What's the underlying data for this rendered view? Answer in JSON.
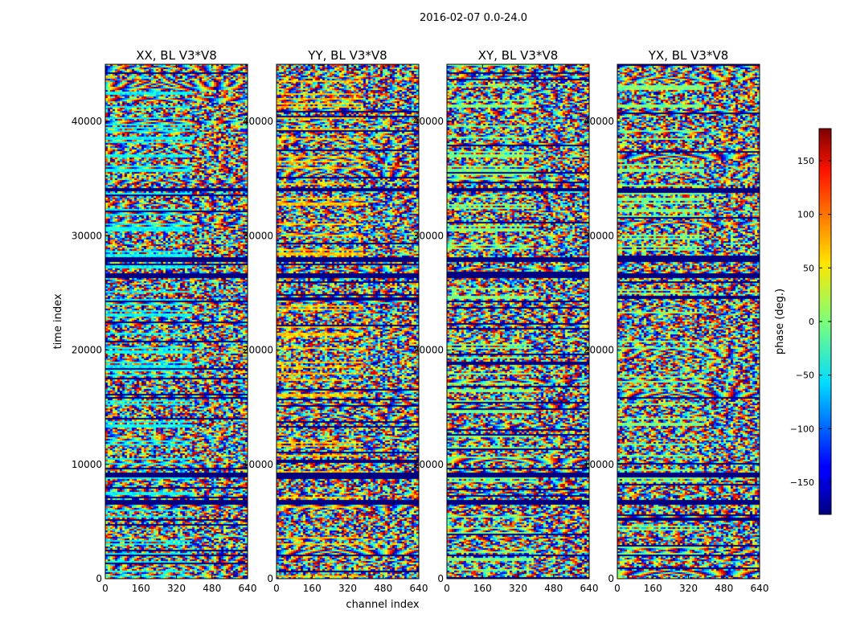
{
  "chart_data": {
    "type": "heatmap",
    "suptitle": "2016-02-07 0.0-24.0",
    "xlabel": "channel index",
    "ylabel": "time index",
    "x_range": [
      0,
      640
    ],
    "y_range": [
      0,
      45000
    ],
    "x_ticks": [
      "0",
      "160",
      "320",
      "480",
      "640"
    ],
    "y_ticks": [
      "0",
      "10000",
      "20000",
      "30000",
      "40000"
    ],
    "panels": [
      {
        "title": "XX, BL V3*V8",
        "pol": "XX"
      },
      {
        "title": "YY, BL V3*V8",
        "pol": "YY"
      },
      {
        "title": "XY, BL V3*V8",
        "pol": "XY"
      },
      {
        "title": "YX, BL V3*V8",
        "pol": "YX"
      }
    ],
    "colorbar": {
      "label": "phase (deg.)",
      "range": [
        -180,
        180
      ],
      "ticks": [
        "150",
        "100",
        "50",
        "0",
        "−50",
        "−100",
        "−150"
      ],
      "tick_values": [
        150,
        100,
        50,
        0,
        -50,
        -100,
        -150
      ],
      "colormap": "jet"
    },
    "masked_bands_time_index": [
      [
        26300,
        26800
      ],
      [
        27800,
        28200
      ],
      [
        9000,
        9400
      ],
      [
        6600,
        7000
      ],
      [
        2000,
        2200
      ],
      [
        34000,
        34300
      ]
    ]
  }
}
